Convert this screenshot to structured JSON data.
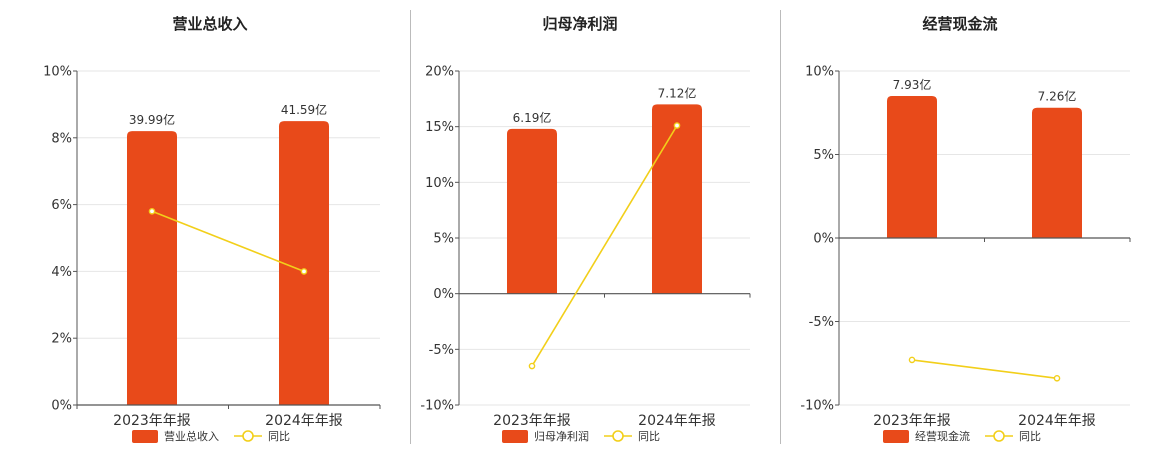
{
  "colors": {
    "bar": "#E84A1A",
    "line": "#F2CF1A",
    "grid": "#E6E6E6",
    "axis": "#555555",
    "divider": "#BBBBBB"
  },
  "chart_data": [
    {
      "type": "bar",
      "title": "营业总收入",
      "categories": [
        "2023年年报",
        "2024年年报"
      ],
      "ylim": [
        0,
        10
      ],
      "yticks": [
        "0%",
        "2%",
        "4%",
        "6%",
        "8%",
        "10%"
      ],
      "grid": true,
      "legend_position": "bottom",
      "series": [
        {
          "name": "营业总收入",
          "type": "bar",
          "values": [
            8.2,
            8.5
          ],
          "labels": [
            "39.99亿",
            "41.59亿"
          ]
        },
        {
          "name": "同比",
          "type": "line",
          "values": [
            5.8,
            4.0
          ]
        }
      ]
    },
    {
      "type": "bar",
      "title": "归母净利润",
      "categories": [
        "2023年年报",
        "2024年年报"
      ],
      "ylim": [
        -10,
        20
      ],
      "yticks": [
        "-10%",
        "-5%",
        "0%",
        "5%",
        "10%",
        "15%",
        "20%"
      ],
      "grid": true,
      "legend_position": "bottom",
      "series": [
        {
          "name": "归母净利润",
          "type": "bar",
          "values": [
            14.8,
            17.0
          ],
          "labels": [
            "6.19亿",
            "7.12亿"
          ]
        },
        {
          "name": "同比",
          "type": "line",
          "values": [
            -6.5,
            15.1
          ]
        }
      ]
    },
    {
      "type": "bar",
      "title": "经营现金流",
      "categories": [
        "2023年年报",
        "2024年年报"
      ],
      "ylim": [
        -10,
        10
      ],
      "yticks": [
        "-10%",
        "-5%",
        "0%",
        "5%",
        "10%"
      ],
      "grid": true,
      "legend_position": "bottom",
      "series": [
        {
          "name": "经营现金流",
          "type": "bar",
          "values": [
            8.5,
            7.8
          ],
          "labels": [
            "7.93亿",
            "7.26亿"
          ]
        },
        {
          "name": "同比",
          "type": "line",
          "values": [
            -7.3,
            -8.4
          ]
        }
      ]
    }
  ]
}
